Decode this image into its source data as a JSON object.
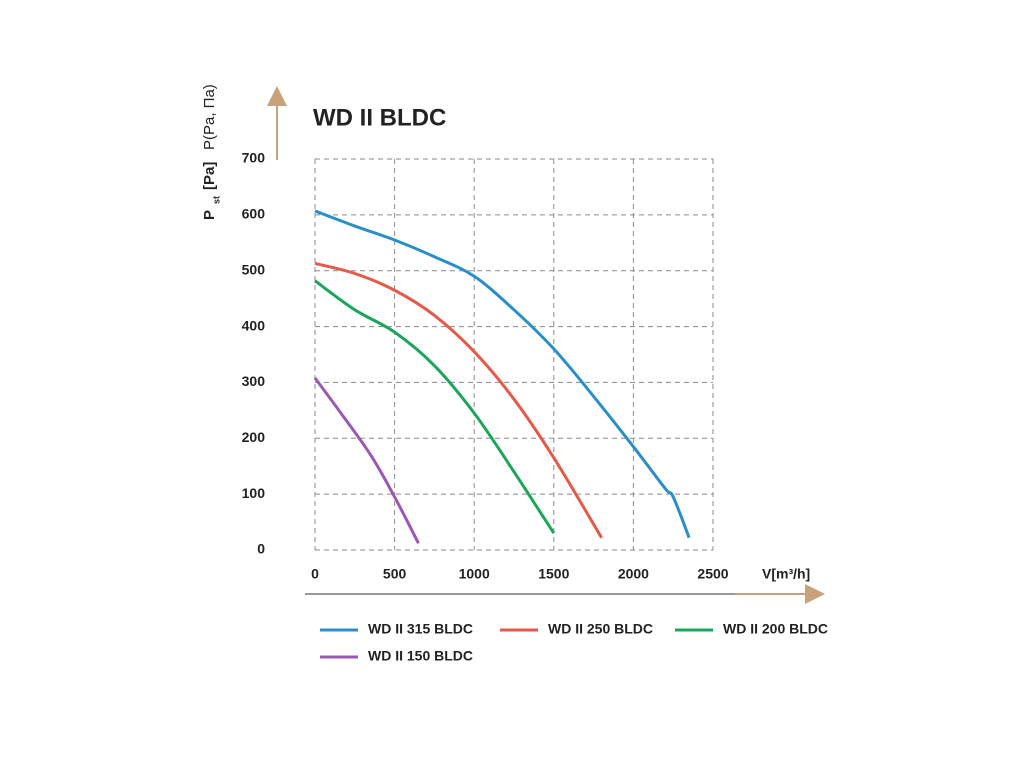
{
  "chart_data": {
    "type": "line",
    "title": "WD II BLDC",
    "y_label": "P",
    "y_label_sub": "st",
    "y_label_unit": "[Pa]",
    "y_label_alt": "P(Pa, Па)",
    "x_label": "V[m³/h]",
    "xlim": [
      0,
      2500
    ],
    "xticks": [
      0,
      500,
      1000,
      1500,
      2000,
      2500
    ],
    "ylim": [
      0,
      700
    ],
    "yticks": [
      0,
      100,
      200,
      300,
      400,
      500,
      600,
      700
    ],
    "grid": true,
    "series": [
      {
        "name": "WD II 315 BLDC",
        "color": "#2a8fc9",
        "x": [
          0,
          250,
          500,
          750,
          1000,
          1250,
          1500,
          1750,
          2000,
          2200,
          2250,
          2350
        ],
        "values": [
          607,
          580,
          555,
          525,
          490,
          430,
          360,
          275,
          185,
          110,
          95,
          22
        ]
      },
      {
        "name": "WD II 250 BLDC",
        "color": "#e55a49",
        "x": [
          0,
          250,
          500,
          750,
          1000,
          1250,
          1500,
          1800
        ],
        "values": [
          513,
          495,
          465,
          420,
          355,
          270,
          165,
          22
        ]
      },
      {
        "name": "WD II 200 BLDC",
        "color": "#1ba65a",
        "x": [
          0,
          250,
          500,
          750,
          1000,
          1250,
          1500
        ],
        "values": [
          482,
          430,
          390,
          330,
          245,
          140,
          30
        ]
      },
      {
        "name": "WD II 150 BLDC",
        "color": "#9b58b5",
        "x": [
          0,
          150,
          350,
          500,
          650
        ],
        "values": [
          308,
          250,
          170,
          95,
          12
        ]
      }
    ]
  }
}
